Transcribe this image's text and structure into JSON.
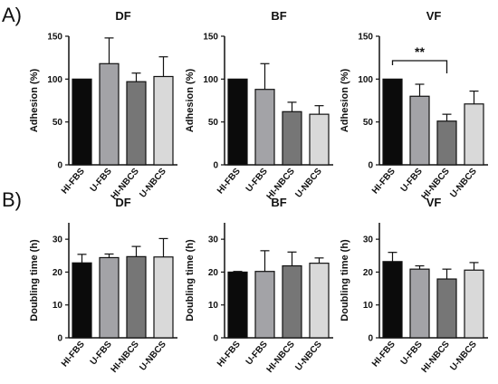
{
  "panels": [
    {
      "label": "A)"
    },
    {
      "label": "B)"
    }
  ],
  "colors": {
    "HI-FBS": "#0b0b0b",
    "U-FBS": "#a3a3a7",
    "HI-NBCS": "#767676",
    "U-NBCS": "#d9d9d9"
  },
  "chart_data": [
    {
      "type": "bar",
      "panel": "A)",
      "title": "DF",
      "ylabel": "Adhesion (%)",
      "ylim": [
        0,
        150
      ],
      "yticks": [
        0,
        50,
        100,
        150
      ],
      "categories": [
        "HI-FBS",
        "U-FBS",
        "HI-NBCS",
        "U-NBCS"
      ],
      "values": [
        100,
        118,
        97,
        103
      ],
      "errors": [
        0,
        30,
        10,
        23
      ],
      "significance": []
    },
    {
      "type": "bar",
      "panel": "A)",
      "title": "BF",
      "ylabel": "Adhesion (%)",
      "ylim": [
        0,
        150
      ],
      "yticks": [
        0,
        50,
        100,
        150
      ],
      "categories": [
        "HI-FBS",
        "U-FBS",
        "HI-NBCS",
        "U-NBCS"
      ],
      "values": [
        100,
        88,
        62,
        59
      ],
      "errors": [
        0,
        30,
        11,
        10
      ],
      "significance": []
    },
    {
      "type": "bar",
      "panel": "A)",
      "title": "VF",
      "ylabel": "Adhesion (%)",
      "ylim": [
        0,
        150
      ],
      "yticks": [
        0,
        50,
        100,
        150
      ],
      "categories": [
        "HI-FBS",
        "U-FBS",
        "HI-NBCS",
        "U-NBCS"
      ],
      "values": [
        100,
        80,
        51,
        71
      ],
      "errors": [
        0,
        14,
        8,
        15
      ],
      "significance": [
        {
          "from": "HI-FBS",
          "to": "HI-NBCS",
          "label": "**"
        }
      ]
    },
    {
      "type": "bar",
      "panel": "B)",
      "title": "DF",
      "ylabel": "Doubling time (h)",
      "ylim": [
        0,
        35
      ],
      "yticks": [
        0,
        10,
        20,
        30
      ],
      "categories": [
        "HI-FBS",
        "U-FBS",
        "HI-NBCS",
        "U-NBCS"
      ],
      "values": [
        22.8,
        24.4,
        24.7,
        24.6
      ],
      "errors": [
        2.6,
        1.1,
        3.1,
        5.6
      ],
      "significance": []
    },
    {
      "type": "bar",
      "panel": "B)",
      "title": "BF",
      "ylabel": "Doubling time (h)",
      "ylim": [
        0,
        35
      ],
      "yticks": [
        0,
        10,
        20,
        30
      ],
      "categories": [
        "HI-FBS",
        "U-FBS",
        "HI-NBCS",
        "U-NBCS"
      ],
      "values": [
        20.0,
        20.2,
        21.9,
        22.7
      ],
      "errors": [
        0.2,
        6.3,
        4.2,
        1.6
      ],
      "significance": []
    },
    {
      "type": "bar",
      "panel": "B)",
      "title": "VF",
      "ylabel": "Doubling time (h)",
      "ylim": [
        0,
        35
      ],
      "yticks": [
        0,
        10,
        20,
        30
      ],
      "categories": [
        "HI-FBS",
        "U-FBS",
        "HI-NBCS",
        "U-NBCS"
      ],
      "values": [
        23.2,
        20.9,
        17.9,
        20.6
      ],
      "errors": [
        2.8,
        1.0,
        3.0,
        2.3
      ],
      "significance": []
    }
  ]
}
